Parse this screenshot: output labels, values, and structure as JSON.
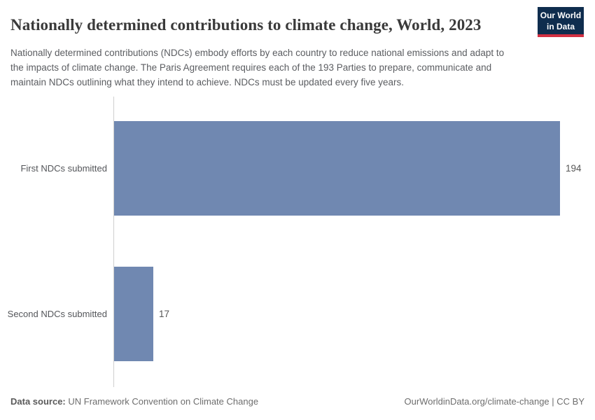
{
  "header": {
    "title": "Nationally determined contributions to climate change, World, 2023",
    "subtitle": "Nationally determined contributions (NDCs) embody efforts by each country to reduce national emissions and adapt to the impacts of climate change. The Paris Agreement requires each of the 193 Parties to prepare, communicate and maintain NDCs outlining what they intend to achieve. NDCs must be updated every five years.",
    "logo": {
      "line1": "Our World",
      "line2": "in Data",
      "bg_color": "#0f2d4e",
      "accent_color": "#d23042"
    }
  },
  "chart_data": {
    "type": "bar",
    "orientation": "horizontal",
    "title": "Nationally determined contributions to climate change, World, 2023",
    "categories": [
      "First NDCs submitted",
      "Second NDCs submitted"
    ],
    "values": [
      194,
      17
    ],
    "value_labels": [
      "194",
      "17"
    ],
    "xlim": [
      0,
      194
    ],
    "grid": false,
    "legend": "none",
    "bar_color": "#7088b1",
    "axis_line_color": "#cfcfcf"
  },
  "footer": {
    "data_source_label": "Data source:",
    "data_source_value": "UN Framework Convention on Climate Change",
    "attribution": "OurWorldinData.org/climate-change | CC BY"
  }
}
